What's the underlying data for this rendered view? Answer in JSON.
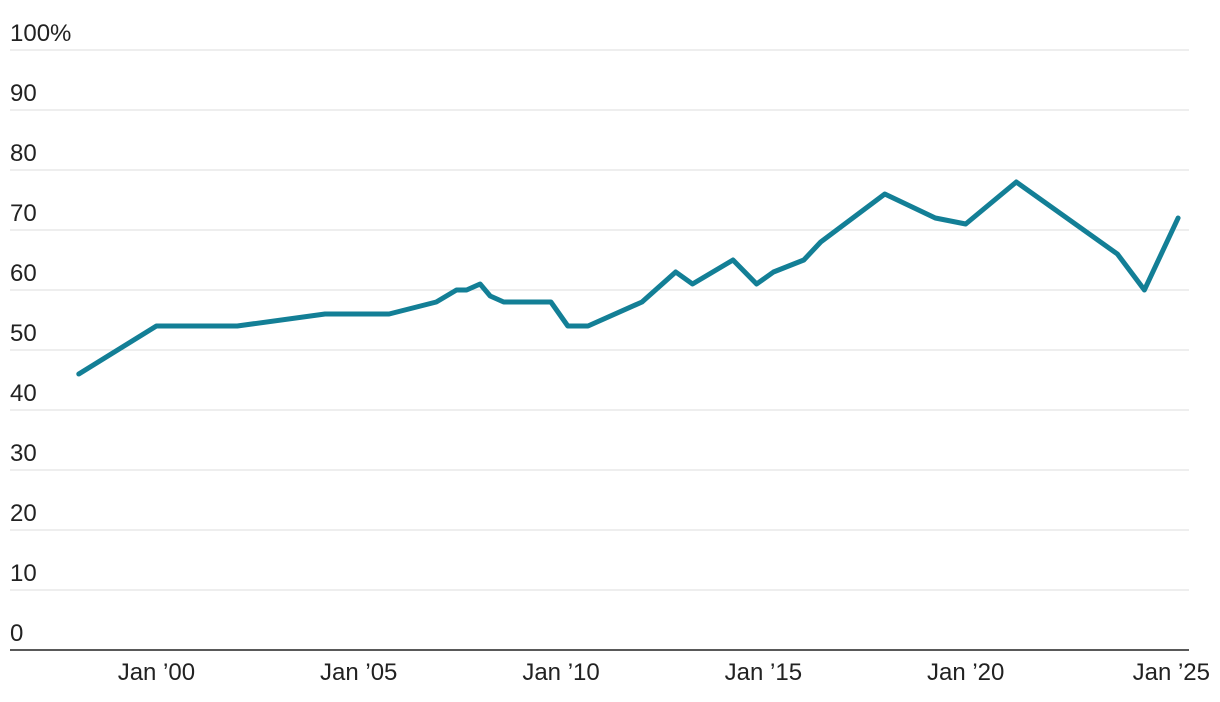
{
  "chart_data": {
    "type": "line",
    "title": "",
    "xlabel": "",
    "ylabel": "",
    "y_unit_label": "100%",
    "ylim": [
      0,
      100
    ],
    "xlim": [
      "1997-01",
      "2025-01"
    ],
    "grid": true,
    "y_ticks": [
      {
        "value": 0,
        "label": "0"
      },
      {
        "value": 10,
        "label": "10"
      },
      {
        "value": 20,
        "label": "20"
      },
      {
        "value": 30,
        "label": "30"
      },
      {
        "value": 40,
        "label": "40"
      },
      {
        "value": 50,
        "label": "50"
      },
      {
        "value": 60,
        "label": "60"
      },
      {
        "value": 70,
        "label": "70"
      },
      {
        "value": 80,
        "label": "80"
      },
      {
        "value": 90,
        "label": "90"
      },
      {
        "value": 100,
        "label": "100%"
      }
    ],
    "x_ticks": [
      {
        "value": "2000-01",
        "label": "Jan ’00"
      },
      {
        "value": "2005-01",
        "label": "Jan ’05"
      },
      {
        "value": "2010-01",
        "label": "Jan ’10"
      },
      {
        "value": "2015-01",
        "label": "Jan ’15"
      },
      {
        "value": "2020-01",
        "label": "Jan ’20"
      },
      {
        "value": "2025-01",
        "label": "Jan ’25"
      }
    ],
    "series": [
      {
        "color": "#137f96",
        "points": [
          {
            "x": "1998-02",
            "y": 46
          },
          {
            "x": "2000-01",
            "y": 54
          },
          {
            "x": "2002-01",
            "y": 54
          },
          {
            "x": "2004-03",
            "y": 56
          },
          {
            "x": "2005-10",
            "y": 56
          },
          {
            "x": "2006-12",
            "y": 58
          },
          {
            "x": "2007-06",
            "y": 60
          },
          {
            "x": "2007-09",
            "y": 60
          },
          {
            "x": "2008-01",
            "y": 61
          },
          {
            "x": "2008-04",
            "y": 59
          },
          {
            "x": "2008-08",
            "y": 58
          },
          {
            "x": "2009-10",
            "y": 58
          },
          {
            "x": "2010-03",
            "y": 54
          },
          {
            "x": "2010-09",
            "y": 54
          },
          {
            "x": "2012-01",
            "y": 58
          },
          {
            "x": "2012-11",
            "y": 63
          },
          {
            "x": "2013-04",
            "y": 61
          },
          {
            "x": "2014-04",
            "y": 65
          },
          {
            "x": "2014-11",
            "y": 61
          },
          {
            "x": "2015-04",
            "y": 63
          },
          {
            "x": "2016-01",
            "y": 65
          },
          {
            "x": "2016-06",
            "y": 68
          },
          {
            "x": "2018-01",
            "y": 76
          },
          {
            "x": "2019-04",
            "y": 72
          },
          {
            "x": "2020-01",
            "y": 71
          },
          {
            "x": "2021-04",
            "y": 78
          },
          {
            "x": "2023-10",
            "y": 66
          },
          {
            "x": "2024-06",
            "y": 60
          },
          {
            "x": "2025-04",
            "y": 72
          }
        ]
      }
    ]
  }
}
